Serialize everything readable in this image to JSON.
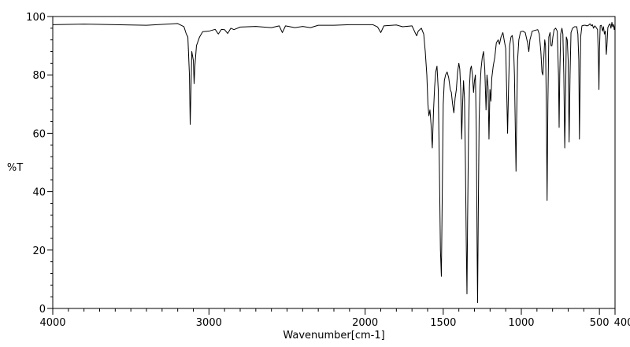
{
  "chart_data": {
    "type": "line",
    "title": "",
    "xlabel": "Wavenumber[cm-1]",
    "ylabel": "%T",
    "xlim": [
      4000,
      400
    ],
    "ylim": [
      0,
      100
    ],
    "x_reversed": true,
    "x_ticks": [
      4000,
      3000,
      2000,
      1500,
      1000,
      500,
      400
    ],
    "x_tick_labels": [
      "4000",
      "3000",
      "2000",
      "1500",
      "1000",
      "500",
      "400"
    ],
    "y_ticks": [
      0,
      20,
      40,
      60,
      80,
      100
    ],
    "y_tick_labels": [
      "0",
      "20",
      "40",
      "60",
      "80",
      "100"
    ],
    "grid": false,
    "legend": "none",
    "line_color": "#000000",
    "series": [
      {
        "points": [
          [
            4000,
            97.2
          ],
          [
            3800,
            97.4
          ],
          [
            3600,
            97.2
          ],
          [
            3400,
            97.0
          ],
          [
            3300,
            97.3
          ],
          [
            3200,
            97.6
          ],
          [
            3160,
            96.5
          ],
          [
            3145,
            94.0
          ],
          [
            3135,
            93.0
          ],
          [
            3125,
            80.0
          ],
          [
            3120,
            63.0
          ],
          [
            3115,
            75.0
          ],
          [
            3110,
            88.0
          ],
          [
            3100,
            85.0
          ],
          [
            3095,
            77.0
          ],
          [
            3090,
            83.0
          ],
          [
            3080,
            90.0
          ],
          [
            3060,
            93.0
          ],
          [
            3040,
            94.8
          ],
          [
            3000,
            95.0
          ],
          [
            2960,
            95.6
          ],
          [
            2940,
            94.0
          ],
          [
            2920,
            95.6
          ],
          [
            2900,
            95.5
          ],
          [
            2880,
            94.2
          ],
          [
            2860,
            96.0
          ],
          [
            2840,
            95.5
          ],
          [
            2800,
            96.4
          ],
          [
            2700,
            96.6
          ],
          [
            2600,
            96.2
          ],
          [
            2550,
            96.8
          ],
          [
            2530,
            94.5
          ],
          [
            2510,
            96.8
          ],
          [
            2450,
            96.2
          ],
          [
            2400,
            96.6
          ],
          [
            2350,
            96.2
          ],
          [
            2300,
            97.0
          ],
          [
            2200,
            97.0
          ],
          [
            2100,
            97.2
          ],
          [
            2000,
            97.2
          ],
          [
            1950,
            97.2
          ],
          [
            1920,
            96.4
          ],
          [
            1900,
            94.5
          ],
          [
            1880,
            96.8
          ],
          [
            1800,
            97.1
          ],
          [
            1760,
            96.5
          ],
          [
            1700,
            96.8
          ],
          [
            1680,
            94.5
          ],
          [
            1670,
            93.4
          ],
          [
            1660,
            95.0
          ],
          [
            1640,
            96.0
          ],
          [
            1625,
            94.0
          ],
          [
            1615,
            88.0
          ],
          [
            1605,
            80.0
          ],
          [
            1598,
            70.0
          ],
          [
            1592,
            66.0
          ],
          [
            1585,
            68.0
          ],
          [
            1578,
            63.0
          ],
          [
            1570,
            55.0
          ],
          [
            1562,
            68.0
          ],
          [
            1555,
            76.0
          ],
          [
            1548,
            81.0
          ],
          [
            1540,
            83.0
          ],
          [
            1532,
            75.0
          ],
          [
            1525,
            50.0
          ],
          [
            1518,
            20.0
          ],
          [
            1512,
            11.0
          ],
          [
            1506,
            40.0
          ],
          [
            1500,
            70.0
          ],
          [
            1493,
            78.0
          ],
          [
            1485,
            80.0
          ],
          [
            1475,
            81.0
          ],
          [
            1465,
            79.0
          ],
          [
            1455,
            75.0
          ],
          [
            1448,
            74.0
          ],
          [
            1440,
            70.0
          ],
          [
            1432,
            67.0
          ],
          [
            1424,
            72.0
          ],
          [
            1416,
            75.0
          ],
          [
            1408,
            81.0
          ],
          [
            1400,
            84.0
          ],
          [
            1394,
            82.0
          ],
          [
            1388,
            75.0
          ],
          [
            1382,
            58.0
          ],
          [
            1376,
            70.0
          ],
          [
            1370,
            78.0
          ],
          [
            1364,
            72.0
          ],
          [
            1358,
            50.0
          ],
          [
            1352,
            20.0
          ],
          [
            1348,
            5.0
          ],
          [
            1344,
            30.0
          ],
          [
            1338,
            60.0
          ],
          [
            1332,
            76.0
          ],
          [
            1326,
            82.0
          ],
          [
            1320,
            83.0
          ],
          [
            1313,
            80.0
          ],
          [
            1306,
            74.0
          ],
          [
            1300,
            78.0
          ],
          [
            1294,
            80.0
          ],
          [
            1288,
            60.0
          ],
          [
            1283,
            20.0
          ],
          [
            1280,
            2.0
          ],
          [
            1276,
            30.0
          ],
          [
            1270,
            65.0
          ],
          [
            1264,
            76.0
          ],
          [
            1258,
            82.0
          ],
          [
            1250,
            86.0
          ],
          [
            1242,
            88.0
          ],
          [
            1234,
            82.0
          ],
          [
            1226,
            68.0
          ],
          [
            1220,
            80.0
          ],
          [
            1213,
            76.0
          ],
          [
            1207,
            58.0
          ],
          [
            1201,
            75.0
          ],
          [
            1195,
            71.0
          ],
          [
            1189,
            79.0
          ],
          [
            1180,
            83.0
          ],
          [
            1170,
            86.0
          ],
          [
            1160,
            91.0
          ],
          [
            1148,
            92.0
          ],
          [
            1140,
            90.5
          ],
          [
            1130,
            93.0
          ],
          [
            1118,
            94.5
          ],
          [
            1110,
            92.0
          ],
          [
            1100,
            89.0
          ],
          [
            1094,
            75.0
          ],
          [
            1088,
            60.0
          ],
          [
            1082,
            75.0
          ],
          [
            1075,
            90.0
          ],
          [
            1066,
            93.0
          ],
          [
            1058,
            93.5
          ],
          [
            1050,
            90.0
          ],
          [
            1044,
            80.0
          ],
          [
            1038,
            60.0
          ],
          [
            1034,
            47.0
          ],
          [
            1030,
            65.0
          ],
          [
            1024,
            85.0
          ],
          [
            1016,
            92.0
          ],
          [
            1005,
            94.8
          ],
          [
            990,
            95.0
          ],
          [
            975,
            94.5
          ],
          [
            960,
            91.0
          ],
          [
            952,
            88.0
          ],
          [
            945,
            92.0
          ],
          [
            930,
            95.0
          ],
          [
            910,
            95.3
          ],
          [
            895,
            95.5
          ],
          [
            885,
            94.0
          ],
          [
            875,
            88.0
          ],
          [
            868,
            81.0
          ],
          [
            862,
            80.0
          ],
          [
            856,
            86.0
          ],
          [
            850,
            92.0
          ],
          [
            845,
            90.0
          ],
          [
            840,
            70.0
          ],
          [
            835,
            37.0
          ],
          [
            830,
            70.0
          ],
          [
            824,
            93.0
          ],
          [
            816,
            94.5
          ],
          [
            810,
            90.0
          ],
          [
            804,
            90.0
          ],
          [
            798,
            93.0
          ],
          [
            790,
            95.5
          ],
          [
            780,
            96.0
          ],
          [
            770,
            95.0
          ],
          [
            762,
            80.0
          ],
          [
            758,
            62.0
          ],
          [
            754,
            80.0
          ],
          [
            748,
            94.0
          ],
          [
            740,
            96.0
          ],
          [
            734,
            94.0
          ],
          [
            728,
            80.0
          ],
          [
            722,
            55.0
          ],
          [
            716,
            75.0
          ],
          [
            712,
            93.0
          ],
          [
            706,
            92.0
          ],
          [
            700,
            85.0
          ],
          [
            694,
            57.0
          ],
          [
            688,
            80.0
          ],
          [
            682,
            94.5
          ],
          [
            672,
            96.0
          ],
          [
            660,
            96.5
          ],
          [
            645,
            96.5
          ],
          [
            638,
            94.0
          ],
          [
            632,
            85.0
          ],
          [
            628,
            58.0
          ],
          [
            624,
            75.0
          ],
          [
            620,
            93.0
          ],
          [
            612,
            96.8
          ],
          [
            600,
            97.0
          ],
          [
            590,
            97.0
          ],
          [
            580,
            96.8
          ],
          [
            570,
            97.0
          ],
          [
            560,
            97.5
          ],
          [
            552,
            96.8
          ],
          [
            545,
            97.2
          ],
          [
            538,
            96.0
          ],
          [
            530,
            96.8
          ],
          [
            520,
            96.2
          ],
          [
            512,
            95.5
          ],
          [
            506,
            85.0
          ],
          [
            503,
            75.0
          ],
          [
            500,
            88.0
          ],
          [
            495,
            96.8
          ],
          [
            488,
            97.0
          ],
          [
            480,
            95.0
          ],
          [
            474,
            96.5
          ],
          [
            468,
            94.0
          ],
          [
            462,
            95.0
          ],
          [
            456,
            87.0
          ],
          [
            452,
            90.0
          ],
          [
            446,
            96.2
          ],
          [
            440,
            97.0
          ],
          [
            432,
            97.5
          ],
          [
            426,
            96.0
          ],
          [
            420,
            98.0
          ],
          [
            415,
            96.5
          ],
          [
            410,
            97.3
          ],
          [
            405,
            95.5
          ],
          [
            400,
            97.0
          ]
        ]
      }
    ]
  }
}
